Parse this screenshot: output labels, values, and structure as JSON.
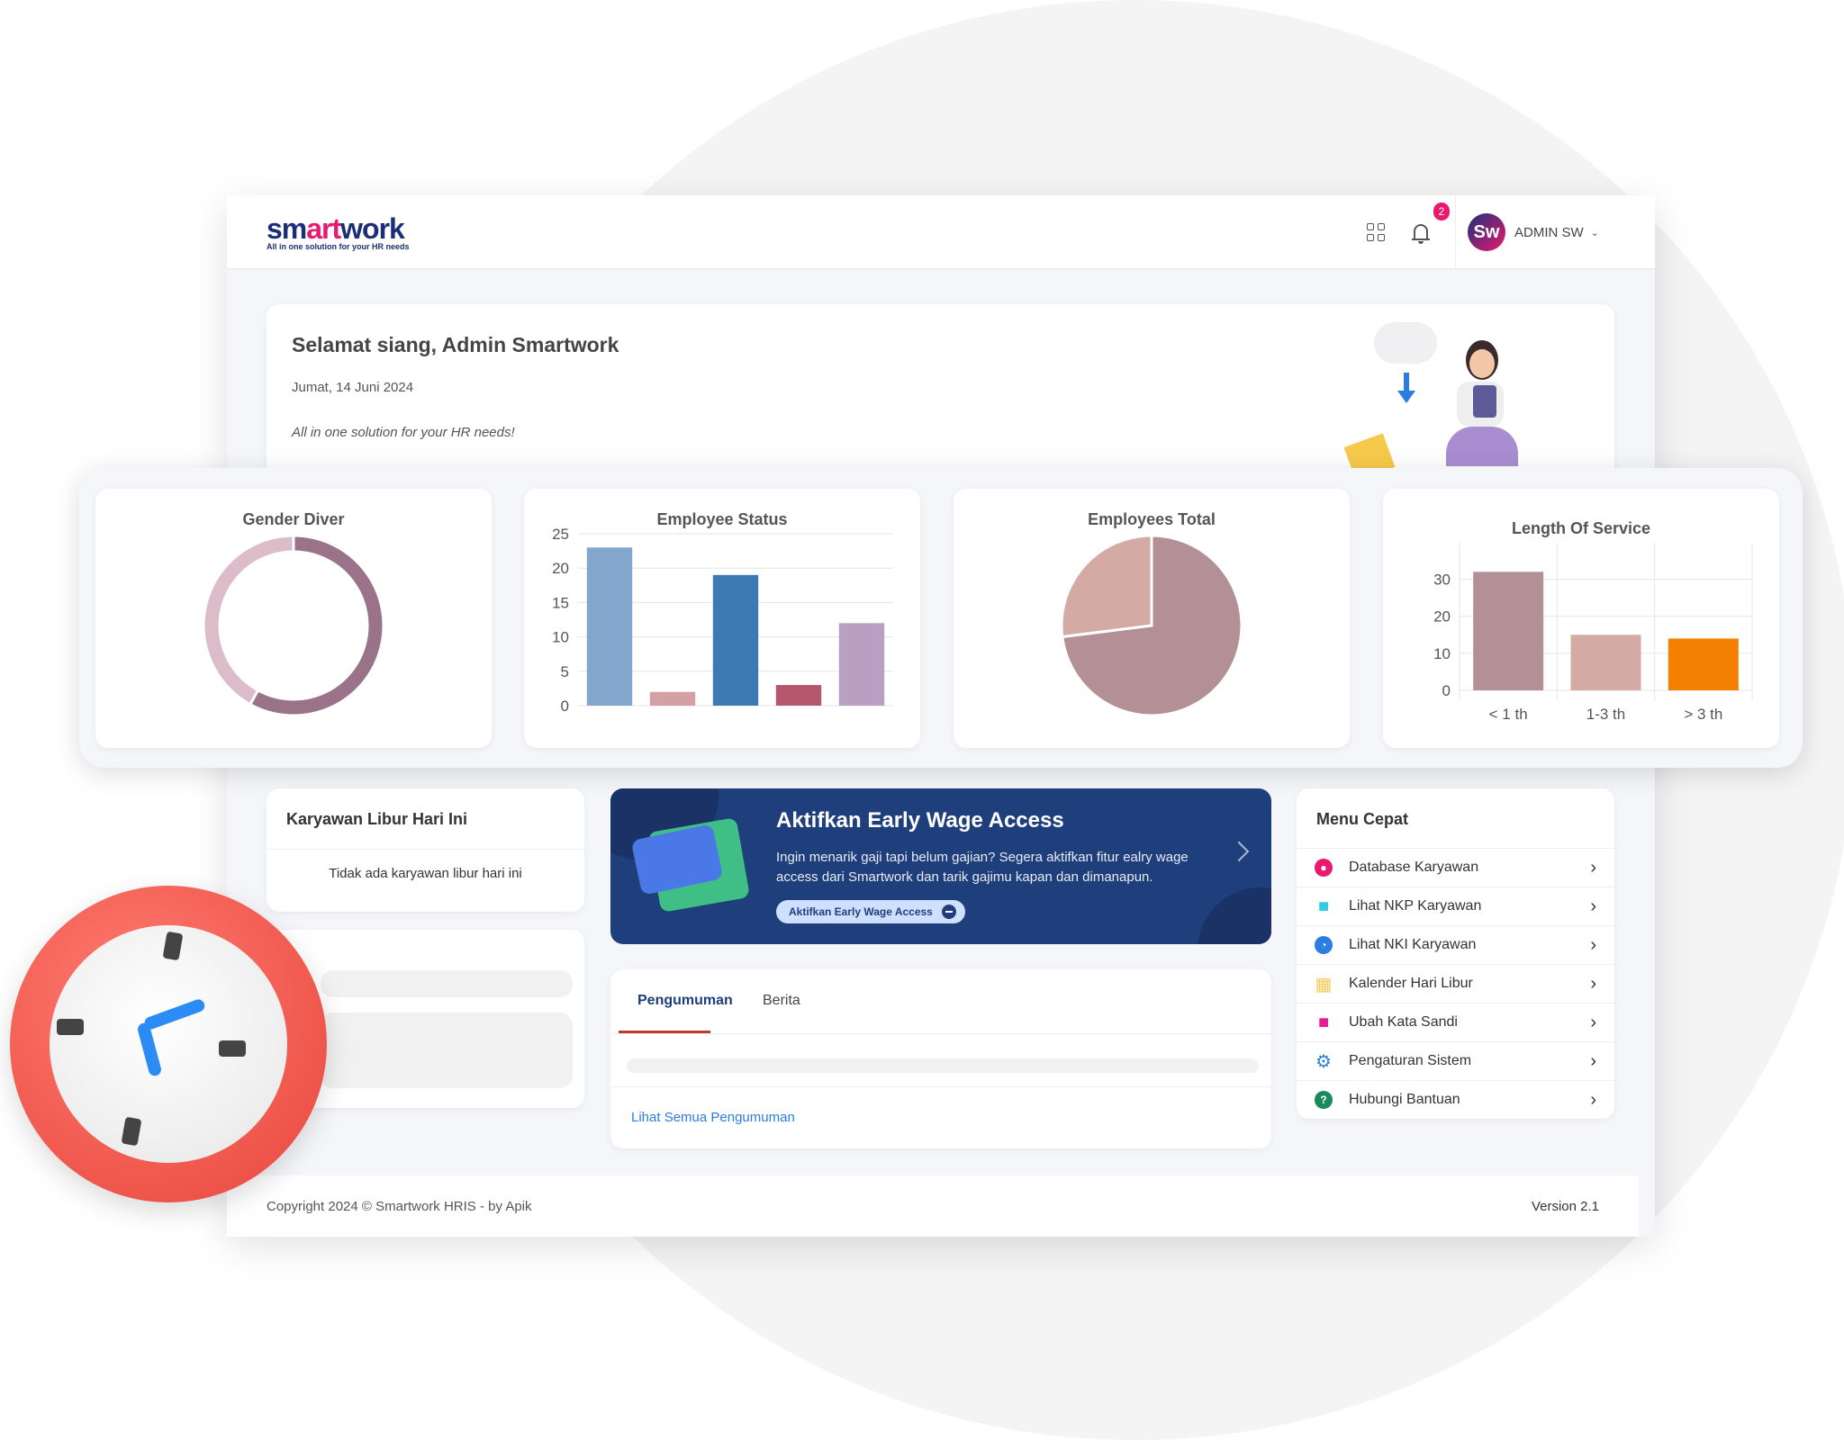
{
  "header": {
    "logo_sm": "sm",
    "logo_art": "art",
    "logo_work": "work",
    "logo_tagline": "All in one solution for your HR needs",
    "notification_count": "2",
    "avatar_initials": "Sw",
    "user_name": "ADMIN SW",
    "icons": [
      "apps-grid-icon",
      "bell-icon",
      "chevron-down-icon"
    ]
  },
  "greeting": {
    "title": "Selamat siang, Admin Smartwork",
    "date": "Jumat, 14 Juni 2024",
    "tagline": "All in one solution for your HR needs!"
  },
  "chart_data": [
    {
      "type": "pie",
      "title": "Gender Diver",
      "donut": true,
      "values": [
        58,
        42
      ],
      "colors": [
        "#9a7388",
        "#dcbcc8"
      ]
    },
    {
      "type": "bar",
      "title": "Employee Status",
      "categories": [
        "",
        "",
        "",
        "",
        ""
      ],
      "values": [
        23,
        2,
        19,
        3,
        12
      ],
      "ylim": [
        0,
        25
      ],
      "yticks": [
        0,
        5,
        10,
        15,
        20,
        25
      ],
      "colors": [
        "#82a6cc",
        "#d4a0a4",
        "#3d7ab3",
        "#b5586e",
        "#b9a0c2"
      ],
      "grid": true
    },
    {
      "type": "pie",
      "title": "Employees Total",
      "values": [
        73,
        27
      ],
      "colors": [
        "#b38f96",
        "#d4aaa5"
      ]
    },
    {
      "type": "bar",
      "title": "Length Of Service",
      "categories": [
        "< 1 th",
        "1-3 th",
        "> 3 th"
      ],
      "values": [
        32,
        15,
        14
      ],
      "ylim": [
        0,
        35
      ],
      "yticks": [
        0,
        10,
        20,
        30
      ],
      "colors": [
        "#b38f96",
        "#d4aaa5",
        "#f57f00"
      ],
      "grid": true
    }
  ],
  "leave": {
    "title": "Karyawan Libur Hari Ini",
    "empty": "Tidak ada karyawan libur hari ini"
  },
  "ewa": {
    "title": "Aktifkan Early Wage Access",
    "desc": "Ingin menarik gaji tapi belum gajian? Segera aktifkan fitur ealry wage access dari Smartwork dan tarik gajimu kapan dan dimanapun.",
    "button": "Aktifkan Early Wage Access",
    "bg": "#1f3e7c"
  },
  "news": {
    "tabs": [
      "Pengumuman",
      "Berita"
    ],
    "active": "Pengumuman",
    "link": "Lihat Semua Pengumuman"
  },
  "menu": {
    "title": "Menu Cepat",
    "items": [
      {
        "label": "Database Karyawan",
        "icon": "user-circle-icon",
        "color": "#e8196f"
      },
      {
        "label": "Lihat NKP Karyawan",
        "icon": "check-square-icon",
        "color": "#2ccbe6"
      },
      {
        "label": "Lihat NKI Karyawan",
        "icon": "clock-icon",
        "color": "#2b7de0"
      },
      {
        "label": "Kalender Hari Libur",
        "icon": "calendar-icon",
        "color": "#f7c95a"
      },
      {
        "label": "Ubah Kata Sandi",
        "icon": "lock-icon",
        "color": "#e8199a"
      },
      {
        "label": "Pengaturan Sistem",
        "icon": "gear-icon",
        "color": "#2b7de0"
      },
      {
        "label": "Hubungi Bantuan",
        "icon": "help-circle-icon",
        "color": "#1b8a5a"
      }
    ]
  },
  "footer": {
    "copyright": "Copyright 2024 © Smartwork HRIS - by Apik",
    "version": "Version 2.1"
  }
}
